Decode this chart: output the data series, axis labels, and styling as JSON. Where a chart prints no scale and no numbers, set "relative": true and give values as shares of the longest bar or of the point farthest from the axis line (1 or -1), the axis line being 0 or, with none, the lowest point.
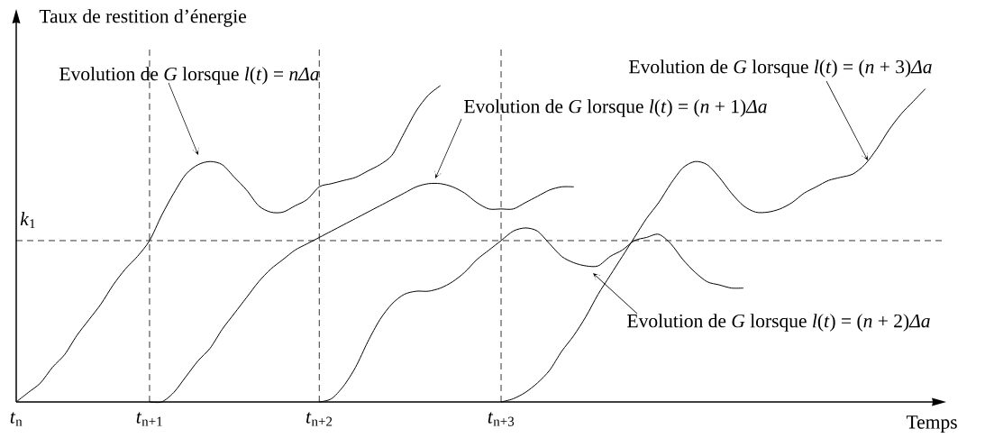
{
  "chart_data": {
    "type": "line",
    "relative": true,
    "line_style": "solid",
    "ylabel": "Taux de restition d’énergie",
    "xlabel": "Temps",
    "categories": [
      "*t*$_{n}$",
      null,
      null,
      null,
      null,
      null,
      null,
      null,
      null,
      null,
      null,
      "*t*$_{n+1}$",
      null,
      null,
      null,
      null,
      null,
      null,
      null,
      null,
      null,
      null,
      null,
      null,
      null,
      "*t*$_{n+2}$",
      null,
      null,
      null,
      null,
      null,
      null,
      null,
      null,
      null,
      null,
      null,
      null,
      null,
      null,
      "*t*$_{n+3}$",
      null,
      null,
      null,
      null,
      null,
      null,
      null,
      null,
      null,
      null,
      null,
      null,
      null,
      null,
      null,
      null,
      null,
      null,
      null,
      null,
      null,
      null,
      null,
      null,
      null,
      null,
      null,
      null,
      null,
      null,
      null,
      null,
      null,
      null,
      null
    ],
    "series": [
      {
        "color": "#000000",
        "values": [
          0,
          0.03,
          0.06,
          0.11,
          0.15,
          0.21,
          0.26,
          0.31,
          0.37,
          0.42,
          0.46,
          0.51,
          0.59,
          0.66,
          0.72,
          0.75,
          0.76,
          0.75,
          0.71,
          0.67,
          0.62,
          0.6,
          0.6,
          0.62,
          0.64,
          0.68,
          0.69,
          0.7,
          0.71,
          0.73,
          0.75,
          0.78,
          0.85,
          0.92,
          0.97,
          1.0,
          null,
          null,
          null,
          null,
          null,
          null,
          null,
          null,
          null,
          null,
          null,
          null,
          null,
          null,
          null,
          null,
          null,
          null,
          null,
          null,
          null,
          null,
          null,
          null,
          null,
          null,
          null,
          null,
          null,
          null,
          null,
          null,
          null,
          null,
          null,
          null,
          null,
          null,
          null,
          null
        ]
      },
      {
        "color": "#000000",
        "values": [
          null,
          null,
          null,
          null,
          null,
          null,
          null,
          null,
          null,
          null,
          null,
          0,
          0,
          0.03,
          0.08,
          0.13,
          0.17,
          0.23,
          0.28,
          0.33,
          0.38,
          0.42,
          0.45,
          0.48,
          0.5,
          0.52,
          0.54,
          0.56,
          0.58,
          0.6,
          0.62,
          0.64,
          0.66,
          0.68,
          0.69,
          0.69,
          0.68,
          0.66,
          0.63,
          0.61,
          0.61,
          0.61,
          0.63,
          0.65,
          0.67,
          0.68,
          0.68,
          null,
          null,
          null,
          null,
          null,
          null,
          null,
          null,
          null,
          null,
          null,
          null,
          null,
          null,
          null,
          null,
          null,
          null,
          null,
          null,
          null,
          null,
          null,
          null,
          null,
          null,
          null,
          null,
          null
        ]
      },
      {
        "color": "#000000",
        "values": [
          null,
          null,
          null,
          null,
          null,
          null,
          null,
          null,
          null,
          null,
          null,
          null,
          null,
          null,
          null,
          null,
          null,
          null,
          null,
          null,
          null,
          null,
          null,
          null,
          null,
          0,
          0.01,
          0.05,
          0.11,
          0.19,
          0.26,
          0.31,
          0.34,
          0.35,
          0.35,
          0.36,
          0.38,
          0.41,
          0.45,
          0.48,
          0.51,
          0.54,
          0.55,
          0.54,
          0.5,
          0.46,
          0.44,
          0.43,
          0.43,
          0.46,
          0.48,
          0.51,
          0.52,
          0.53,
          0.5,
          0.45,
          0.41,
          0.38,
          0.37,
          0.36,
          0.36,
          null,
          null,
          null,
          null,
          null,
          null,
          null,
          null,
          null,
          null,
          null,
          null,
          null,
          null,
          null
        ]
      },
      {
        "color": "#000000",
        "values": [
          null,
          null,
          null,
          null,
          null,
          null,
          null,
          null,
          null,
          null,
          null,
          null,
          null,
          null,
          null,
          null,
          null,
          null,
          null,
          null,
          null,
          null,
          null,
          null,
          null,
          null,
          null,
          null,
          null,
          null,
          null,
          null,
          null,
          null,
          null,
          null,
          null,
          null,
          null,
          null,
          0,
          0.01,
          0.03,
          0.06,
          0.1,
          0.16,
          0.21,
          0.27,
          0.34,
          0.4,
          0.46,
          0.52,
          0.58,
          0.63,
          0.69,
          0.74,
          0.76,
          0.75,
          0.71,
          0.66,
          0.62,
          0.6,
          0.6,
          0.61,
          0.63,
          0.66,
          0.68,
          0.7,
          0.71,
          0.72,
          0.75,
          0.8,
          0.86,
          0.91,
          0.95,
          0.99
        ]
      }
    ],
    "ref_lines": [
      {
        "axis": "y",
        "value": 0.51,
        "label": "*k*$_{1}$",
        "line_style": "dashed",
        "color": "#000000"
      },
      {
        "axis": "x",
        "value": "*t*$_{n+1}$",
        "line_style": "dashed",
        "color": "#000000"
      },
      {
        "axis": "x",
        "value": "*t*$_{n+2}$",
        "line_style": "dashed",
        "color": "#000000"
      },
      {
        "axis": "x",
        "value": "*t*$_{n+3}$",
        "line_style": "dashed",
        "color": "#000000"
      }
    ],
    "annotations": [
      "Evolution de *G* lorsque *l*(*t*) = *nΔa*",
      "Evolution de *G* lorsque *l*(*t*) = (*n* + 1)*Δa*",
      "Evolution de *G* lorsque *l*(*t*) = (*n* + 2)*Δa*",
      "Evolution de *G* lorsque *l*(*t*) = (*n* + 3)*Δa*"
    ]
  }
}
